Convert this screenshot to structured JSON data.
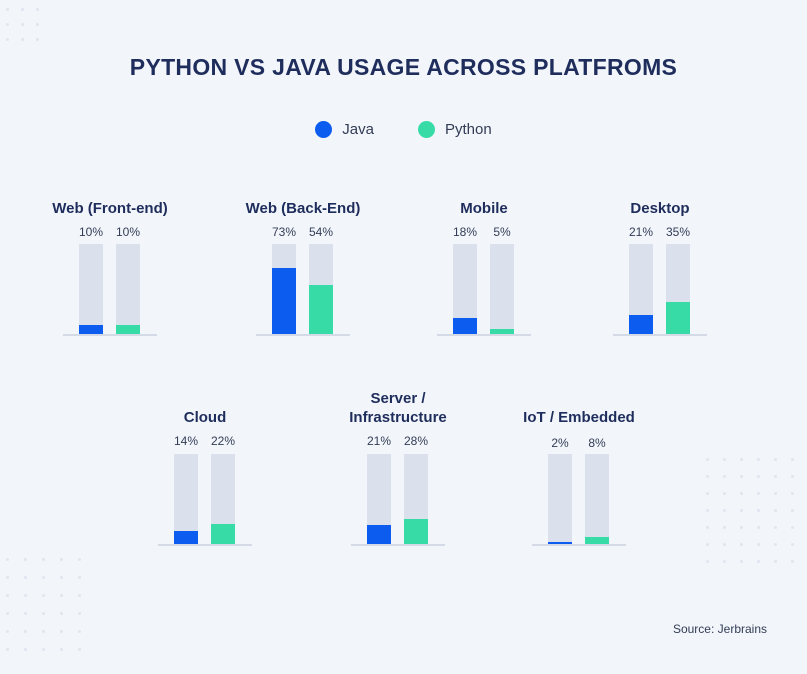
{
  "chart_data": {
    "type": "bar",
    "title": "PYTHON VS JAVA USAGE ACROSS PLATFROMS",
    "legend": [
      "Java",
      "Python"
    ],
    "legend_position": "top-center",
    "ylim": [
      0,
      100
    ],
    "unit": "%",
    "colors": {
      "Java": "#0d5cf0",
      "Python": "#36dba6",
      "track": "#dbe1ec"
    },
    "categories": [
      "Web (Front-end)",
      "Web (Back-End)",
      "Mobile",
      "Desktop",
      "Cloud",
      "Server / Infrastructure",
      "IoT / Embedded"
    ],
    "series": [
      {
        "name": "Java",
        "values": [
          10,
          73,
          18,
          21,
          14,
          21,
          2
        ]
      },
      {
        "name": "Python",
        "values": [
          10,
          54,
          5,
          35,
          22,
          28,
          8
        ]
      }
    ],
    "labels": {
      "Java": [
        "10%",
        "73%",
        "18%",
        "21%",
        "14%",
        "21%",
        "2%"
      ],
      "Python": [
        "10%",
        "54%",
        "5%",
        "35%",
        "22%",
        "28%",
        "8%"
      ]
    },
    "source": "Source: Jerbrains"
  }
}
